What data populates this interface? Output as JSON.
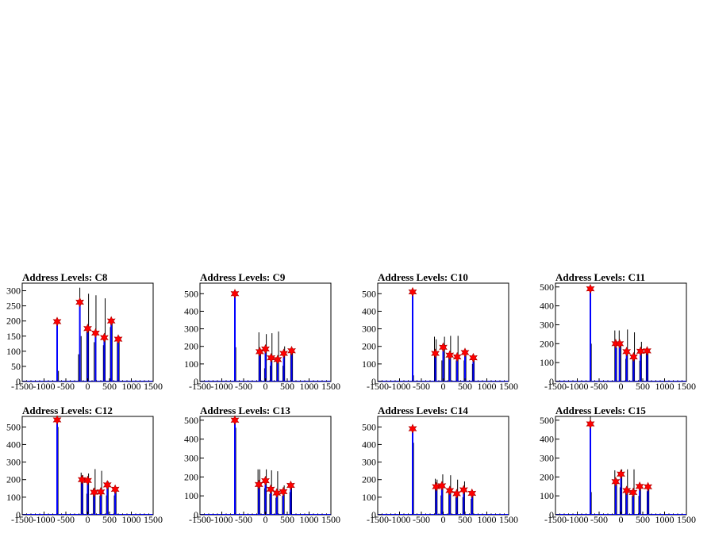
{
  "chart_data": [
    {
      "type": "histogram",
      "title": "Address Levels: C8",
      "xlim": [
        -1500,
        1500
      ],
      "ylim": [
        0,
        325
      ],
      "xticks": [
        -1500,
        -1000,
        -500,
        0,
        500,
        1000,
        1500
      ],
      "yticks": [
        0,
        50,
        100,
        150,
        200,
        250,
        300
      ],
      "peaks": [
        {
          "x": -700,
          "y": 198
        },
        {
          "x": -180,
          "y": 262
        },
        {
          "x": 0,
          "y": 175
        },
        {
          "x": 180,
          "y": 160
        },
        {
          "x": 380,
          "y": 145
        },
        {
          "x": 540,
          "y": 200
        },
        {
          "x": 700,
          "y": 140
        }
      ],
      "spikes": [
        {
          "x": -700,
          "y": 205
        },
        {
          "x": -670,
          "y": 35
        },
        {
          "x": -210,
          "y": 90
        },
        {
          "x": -180,
          "y": 310
        },
        {
          "x": -150,
          "y": 150
        },
        {
          "x": -20,
          "y": 165
        },
        {
          "x": 20,
          "y": 290
        },
        {
          "x": 150,
          "y": 130
        },
        {
          "x": 190,
          "y": 285
        },
        {
          "x": 360,
          "y": 120
        },
        {
          "x": 400,
          "y": 275
        },
        {
          "x": 520,
          "y": 180
        },
        {
          "x": 560,
          "y": 205
        },
        {
          "x": 680,
          "y": 130
        },
        {
          "x": 720,
          "y": 150
        }
      ]
    },
    {
      "type": "histogram",
      "title": "Address Levels: C9",
      "xlim": [
        -1500,
        1500
      ],
      "ylim": [
        0,
        560
      ],
      "xticks": [
        -1500,
        -1000,
        -500,
        0,
        500,
        1000,
        1500
      ],
      "yticks": [
        0,
        100,
        200,
        300,
        400,
        500
      ],
      "peaks": [
        {
          "x": -700,
          "y": 500
        },
        {
          "x": -130,
          "y": 170
        },
        {
          "x": 0,
          "y": 185
        },
        {
          "x": 130,
          "y": 135
        },
        {
          "x": 280,
          "y": 125
        },
        {
          "x": 420,
          "y": 160
        },
        {
          "x": 600,
          "y": 175
        }
      ],
      "spikes": [
        {
          "x": -700,
          "y": 520
        },
        {
          "x": -680,
          "y": 195
        },
        {
          "x": -150,
          "y": 280
        },
        {
          "x": -110,
          "y": 170
        },
        {
          "x": -20,
          "y": 75
        },
        {
          "x": 20,
          "y": 270
        },
        {
          "x": 110,
          "y": 90
        },
        {
          "x": 150,
          "y": 275
        },
        {
          "x": 260,
          "y": 120
        },
        {
          "x": 300,
          "y": 285
        },
        {
          "x": 400,
          "y": 90
        },
        {
          "x": 440,
          "y": 200
        },
        {
          "x": 580,
          "y": 165
        },
        {
          "x": 620,
          "y": 180
        }
      ]
    },
    {
      "type": "histogram",
      "title": "Address Levels: C10",
      "xlim": [
        -1500,
        1500
      ],
      "ylim": [
        0,
        560
      ],
      "xticks": [
        -1500,
        -1000,
        -500,
        0,
        500,
        1000,
        1500
      ],
      "yticks": [
        0,
        100,
        200,
        300,
        400,
        500
      ],
      "peaks": [
        {
          "x": -700,
          "y": 510
        },
        {
          "x": -180,
          "y": 160
        },
        {
          "x": 0,
          "y": 195
        },
        {
          "x": 150,
          "y": 150
        },
        {
          "x": 320,
          "y": 140
        },
        {
          "x": 500,
          "y": 165
        },
        {
          "x": 690,
          "y": 135
        }
      ],
      "spikes": [
        {
          "x": -700,
          "y": 530
        },
        {
          "x": -680,
          "y": 35
        },
        {
          "x": -200,
          "y": 255
        },
        {
          "x": -160,
          "y": 240
        },
        {
          "x": -30,
          "y": 120
        },
        {
          "x": 30,
          "y": 255
        },
        {
          "x": 130,
          "y": 140
        },
        {
          "x": 170,
          "y": 260
        },
        {
          "x": 300,
          "y": 120
        },
        {
          "x": 340,
          "y": 260
        },
        {
          "x": 480,
          "y": 120
        },
        {
          "x": 520,
          "y": 180
        },
        {
          "x": 670,
          "y": 100
        },
        {
          "x": 710,
          "y": 140
        }
      ]
    },
    {
      "type": "histogram",
      "title": "Address Levels: C11",
      "xlim": [
        -1500,
        1500
      ],
      "ylim": [
        0,
        520
      ],
      "xticks": [
        -1500,
        -1000,
        -500,
        0,
        500,
        1000,
        1500
      ],
      "yticks": [
        0,
        100,
        200,
        300,
        400,
        500
      ],
      "peaks": [
        {
          "x": -700,
          "y": 490
        },
        {
          "x": -120,
          "y": 200
        },
        {
          "x": -30,
          "y": 200
        },
        {
          "x": 130,
          "y": 158
        },
        {
          "x": 290,
          "y": 130
        },
        {
          "x": 450,
          "y": 160
        },
        {
          "x": 600,
          "y": 162
        }
      ],
      "spikes": [
        {
          "x": -700,
          "y": 500
        },
        {
          "x": -680,
          "y": 200
        },
        {
          "x": -140,
          "y": 270
        },
        {
          "x": -100,
          "y": 180
        },
        {
          "x": -40,
          "y": 270
        },
        {
          "x": 0,
          "y": 200
        },
        {
          "x": 110,
          "y": 120
        },
        {
          "x": 150,
          "y": 275
        },
        {
          "x": 270,
          "y": 120
        },
        {
          "x": 310,
          "y": 260
        },
        {
          "x": 430,
          "y": 110
        },
        {
          "x": 470,
          "y": 210
        },
        {
          "x": 580,
          "y": 150
        },
        {
          "x": 620,
          "y": 170
        }
      ]
    },
    {
      "type": "histogram",
      "title": "Address Levels: C12",
      "xlim": [
        -1500,
        1500
      ],
      "ylim": [
        0,
        560
      ],
      "xticks": [
        -1500,
        -1000,
        -500,
        0,
        500,
        1000,
        1500
      ],
      "yticks": [
        0,
        100,
        200,
        300,
        400,
        500
      ],
      "peaks": [
        {
          "x": -700,
          "y": 540
        },
        {
          "x": -130,
          "y": 200
        },
        {
          "x": 0,
          "y": 195
        },
        {
          "x": 150,
          "y": 128
        },
        {
          "x": 300,
          "y": 130
        },
        {
          "x": 450,
          "y": 170
        },
        {
          "x": 630,
          "y": 145
        }
      ],
      "spikes": [
        {
          "x": -700,
          "y": 550
        },
        {
          "x": -680,
          "y": 500
        },
        {
          "x": -150,
          "y": 240
        },
        {
          "x": -110,
          "y": 225
        },
        {
          "x": -20,
          "y": 120
        },
        {
          "x": 20,
          "y": 235
        },
        {
          "x": 130,
          "y": 150
        },
        {
          "x": 170,
          "y": 260
        },
        {
          "x": 280,
          "y": 110
        },
        {
          "x": 320,
          "y": 250
        },
        {
          "x": 430,
          "y": 110
        },
        {
          "x": 470,
          "y": 190
        },
        {
          "x": 610,
          "y": 110
        },
        {
          "x": 650,
          "y": 150
        }
      ]
    },
    {
      "type": "histogram",
      "title": "Address Levels: C13",
      "xlim": [
        -1500,
        1500
      ],
      "ylim": [
        0,
        520
      ],
      "xticks": [
        -1500,
        -1000,
        -500,
        0,
        500,
        1000,
        1500
      ],
      "yticks": [
        0,
        100,
        200,
        300,
        400,
        500
      ],
      "peaks": [
        {
          "x": -700,
          "y": 500
        },
        {
          "x": -150,
          "y": 160
        },
        {
          "x": 0,
          "y": 180
        },
        {
          "x": 120,
          "y": 135
        },
        {
          "x": 260,
          "y": 115
        },
        {
          "x": 410,
          "y": 122
        },
        {
          "x": 580,
          "y": 155
        }
      ],
      "spikes": [
        {
          "x": -700,
          "y": 510
        },
        {
          "x": -680,
          "y": 460
        },
        {
          "x": -170,
          "y": 240
        },
        {
          "x": -130,
          "y": 240
        },
        {
          "x": -20,
          "y": 140
        },
        {
          "x": 20,
          "y": 240
        },
        {
          "x": 100,
          "y": 110
        },
        {
          "x": 140,
          "y": 235
        },
        {
          "x": 240,
          "y": 90
        },
        {
          "x": 280,
          "y": 230
        },
        {
          "x": 390,
          "y": 100
        },
        {
          "x": 430,
          "y": 155
        },
        {
          "x": 560,
          "y": 120
        },
        {
          "x": 600,
          "y": 165
        }
      ]
    },
    {
      "type": "histogram",
      "title": "Address Levels: C14",
      "xlim": [
        -1500,
        1500
      ],
      "ylim": [
        0,
        560
      ],
      "xticks": [
        -1500,
        -1000,
        -500,
        0,
        500,
        1000,
        1500
      ],
      "yticks": [
        0,
        100,
        200,
        300,
        400,
        500
      ],
      "peaks": [
        {
          "x": -700,
          "y": 490
        },
        {
          "x": -160,
          "y": 160
        },
        {
          "x": -30,
          "y": 165
        },
        {
          "x": 150,
          "y": 138
        },
        {
          "x": 310,
          "y": 120
        },
        {
          "x": 470,
          "y": 142
        },
        {
          "x": 660,
          "y": 122
        }
      ],
      "spikes": [
        {
          "x": -700,
          "y": 500
        },
        {
          "x": -680,
          "y": 410
        },
        {
          "x": -180,
          "y": 205
        },
        {
          "x": -140,
          "y": 200
        },
        {
          "x": -50,
          "y": 110
        },
        {
          "x": -10,
          "y": 230
        },
        {
          "x": 130,
          "y": 130
        },
        {
          "x": 170,
          "y": 225
        },
        {
          "x": 290,
          "y": 100
        },
        {
          "x": 330,
          "y": 200
        },
        {
          "x": 450,
          "y": 100
        },
        {
          "x": 490,
          "y": 190
        },
        {
          "x": 640,
          "y": 90
        },
        {
          "x": 680,
          "y": 125
        }
      ]
    },
    {
      "type": "histogram",
      "title": "Address Levels: C15",
      "xlim": [
        -1500,
        1500
      ],
      "ylim": [
        0,
        520
      ],
      "xticks": [
        -1500,
        -1000,
        -500,
        0,
        500,
        1000,
        1500
      ],
      "yticks": [
        0,
        100,
        200,
        300,
        400,
        500
      ],
      "peaks": [
        {
          "x": -700,
          "y": 480
        },
        {
          "x": -120,
          "y": 175
        },
        {
          "x": 0,
          "y": 215
        },
        {
          "x": 130,
          "y": 128
        },
        {
          "x": 280,
          "y": 118
        },
        {
          "x": 430,
          "y": 150
        },
        {
          "x": 620,
          "y": 148
        }
      ],
      "spikes": [
        {
          "x": -700,
          "y": 520
        },
        {
          "x": -680,
          "y": 120
        },
        {
          "x": -140,
          "y": 235
        },
        {
          "x": -100,
          "y": 190
        },
        {
          "x": -20,
          "y": 145
        },
        {
          "x": 20,
          "y": 240
        },
        {
          "x": 110,
          "y": 140
        },
        {
          "x": 150,
          "y": 240
        },
        {
          "x": 260,
          "y": 100
        },
        {
          "x": 300,
          "y": 240
        },
        {
          "x": 410,
          "y": 100
        },
        {
          "x": 450,
          "y": 160
        },
        {
          "x": 600,
          "y": 125
        },
        {
          "x": 640,
          "y": 150
        }
      ]
    }
  ],
  "colors": {
    "histogram": "#0000ff",
    "spike": "#000000",
    "peak_marker": "#ff0000",
    "frame": "#000000",
    "background": "#ffffff"
  }
}
